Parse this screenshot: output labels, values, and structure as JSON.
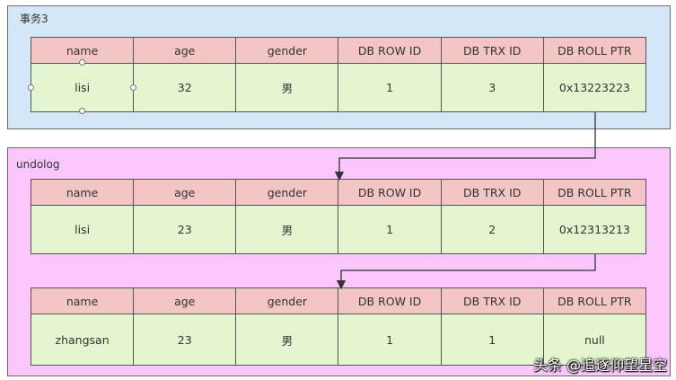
{
  "transaction": {
    "label": "事务3",
    "row": {
      "headers": [
        "name",
        "age",
        "gender",
        "DB ROW ID",
        "DB TRX ID",
        "DB ROLL PTR"
      ],
      "values": [
        "lisi",
        "32",
        "男",
        "1",
        "3",
        "0x13223223"
      ]
    }
  },
  "undolog": {
    "label": "undolog",
    "rows": [
      {
        "headers": [
          "name",
          "age",
          "gender",
          "DB ROW ID",
          "DB TRX ID",
          "DB ROLL PTR"
        ],
        "values": [
          "lisi",
          "23",
          "男",
          "1",
          "2",
          "0x12313213"
        ]
      },
      {
        "headers": [
          "name",
          "age",
          "gender",
          "DB ROW ID",
          "DB TRX ID",
          "DB ROLL PTR"
        ],
        "values": [
          "zhangsan",
          "23",
          "男",
          "1",
          "1",
          "null"
        ]
      }
    ]
  },
  "watermark": "头条 @追逐仰望星空",
  "colors": {
    "transaction_panel": "#d3e7f8",
    "undolog_panel": "#fbc6fb",
    "header_cell": "#f4c5c5",
    "value_cell": "#e3f6cf",
    "arrow": "#333333"
  }
}
